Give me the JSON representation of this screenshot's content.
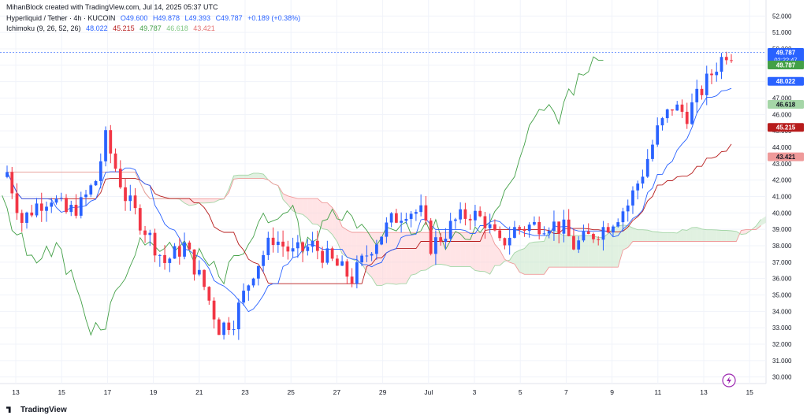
{
  "header": {
    "credit": "MihanBlock created with TradingView.com, Jul 14, 2025 05:37 UTC",
    "symbol": "Hyperliquid / Tether · 4h · KUCOIN",
    "o": "O49.600",
    "h": "H49.878",
    "l": "L49.393",
    "c": "C49.787",
    "chg": "+0.189 (+0.38%)",
    "ichimoku_label": "Ichimoku (9, 26, 52, 26)",
    "ichi_conv": "48.022",
    "ichi_base": "45.215",
    "ichi_lead": "49.787",
    "ichi_spanA": "46.618",
    "ichi_spanB": "43.421"
  },
  "footer": {
    "brand": "TradingView"
  },
  "colors": {
    "up": "#2962ff",
    "down": "#f23645",
    "conversion": "#2962ff",
    "base": "#b71c1c",
    "lagging": "#43a047",
    "cloud_bull": "#c8e6c9",
    "cloud_bear": "#ffcdd2",
    "spanA": "#a5d6a7",
    "spanB": "#ef9a9a"
  },
  "chart_data": {
    "type": "candlestick",
    "x_ticks": [
      "13",
      "15",
      "17",
      "19",
      "21",
      "23",
      "25",
      "27",
      "29",
      "Jul",
      "3",
      "5",
      "7",
      "9",
      "11",
      "13",
      "15"
    ],
    "y_ticks": [
      "52.000",
      "51.000",
      "50.000",
      "49.000",
      "48.000",
      "47.000",
      "46.000",
      "45.000",
      "44.000",
      "43.000",
      "42.000",
      "41.000",
      "40.000",
      "39.000",
      "38.000",
      "37.000",
      "36.000",
      "35.000",
      "34.000",
      "33.000",
      "32.000",
      "31.000",
      "30.000"
    ],
    "ylim": [
      29.6,
      52.4
    ],
    "price_labels": [
      {
        "value": 49.787,
        "text": "49.787",
        "sub": "02:22:47",
        "color": "#2962ff"
      },
      {
        "value": 49.787,
        "text": "49.787",
        "color": "#43a047"
      },
      {
        "value": 48.022,
        "text": "48.022",
        "color": "#2962ff"
      },
      {
        "value": 46.618,
        "text": "46.618",
        "color": "#a5d6a7"
      },
      {
        "value": 45.215,
        "text": "45.215",
        "color": "#b71c1c"
      },
      {
        "value": 43.421,
        "text": "43.421",
        "color": "#ef9a9a"
      }
    ],
    "price_anchors": [
      [
        0,
        42.5
      ],
      [
        3,
        39.5
      ],
      [
        6,
        40.5
      ],
      [
        9,
        41.0
      ],
      [
        12,
        40.0
      ],
      [
        15,
        40.5
      ],
      [
        18,
        42.0
      ],
      [
        20,
        44.5
      ],
      [
        24,
        41.0
      ],
      [
        28,
        39.0
      ],
      [
        32,
        37.0
      ],
      [
        36,
        38.0
      ],
      [
        40,
        35.5
      ],
      [
        43,
        33.0
      ],
      [
        46,
        33.5
      ],
      [
        50,
        36.5
      ],
      [
        54,
        38.5
      ],
      [
        58,
        37.5
      ],
      [
        62,
        38.0
      ],
      [
        66,
        37.0
      ],
      [
        70,
        36.0
      ],
      [
        74,
        38.0
      ],
      [
        78,
        39.5
      ],
      [
        81,
        40.2
      ],
      [
        84,
        40.0
      ],
      [
        86,
        38.0
      ],
      [
        88,
        38.5
      ],
      [
        91,
        39.5
      ],
      [
        94,
        40.0
      ],
      [
        97,
        39.5
      ],
      [
        100,
        38.0
      ],
      [
        103,
        39.0
      ],
      [
        106,
        39.2
      ],
      [
        110,
        39.4
      ],
      [
        113,
        39.0
      ],
      [
        115,
        38.0
      ],
      [
        118,
        38.5
      ],
      [
        122,
        39.3
      ],
      [
        126,
        40.5
      ],
      [
        129,
        42.5
      ],
      [
        132,
        45.0
      ],
      [
        135,
        46.5
      ],
      [
        138,
        46.0
      ],
      [
        141,
        47.5
      ],
      [
        144,
        49.0
      ],
      [
        146,
        49.8
      ]
    ],
    "ranges": {
      "start": "2025-06-12",
      "timeframe": "4h"
    }
  }
}
